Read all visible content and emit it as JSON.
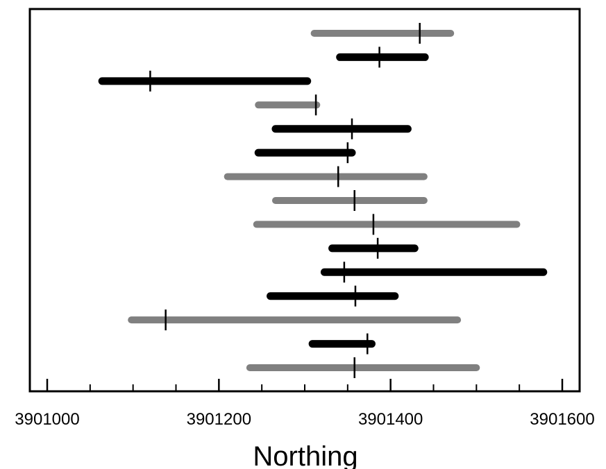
{
  "chart_data": {
    "type": "range",
    "title": "",
    "xlabel": "Northing",
    "ylabel": "",
    "xlim": [
      3900980,
      3901620
    ],
    "xticks": [
      3901000,
      3901200,
      3901400,
      3901600
    ],
    "minor_xticks": [
      3901050,
      3901100,
      3901150,
      3901250,
      3901300,
      3901350,
      3901450,
      3901500,
      3901550
    ],
    "grid": false,
    "legend": "none",
    "colors": {
      "black": "#000000",
      "gray": "#808080"
    },
    "intervals": [
      {
        "low": 3901311,
        "high": 3901470,
        "mark": 3901434,
        "color": "gray"
      },
      {
        "low": 3901341,
        "high": 3901440,
        "mark": 3901387,
        "color": "black"
      },
      {
        "low": 3901064,
        "high": 3901303,
        "mark": 3901120,
        "color": "black"
      },
      {
        "low": 3901246,
        "high": 3901314,
        "mark": 3901313,
        "color": "gray"
      },
      {
        "low": 3901266,
        "high": 3901420,
        "mark": 3901355,
        "color": "black"
      },
      {
        "low": 3901246,
        "high": 3901355,
        "mark": 3901350,
        "color": "black"
      },
      {
        "low": 3901210,
        "high": 3901439,
        "mark": 3901339,
        "color": "gray"
      },
      {
        "low": 3901266,
        "high": 3901439,
        "mark": 3901358,
        "color": "gray"
      },
      {
        "low": 3901244,
        "high": 3901547,
        "mark": 3901380,
        "color": "gray"
      },
      {
        "low": 3901332,
        "high": 3901428,
        "mark": 3901385,
        "color": "black"
      },
      {
        "low": 3901323,
        "high": 3901578,
        "mark": 3901346,
        "color": "black"
      },
      {
        "low": 3901260,
        "high": 3901405,
        "mark": 3901359,
        "color": "black"
      },
      {
        "low": 3901098,
        "high": 3901478,
        "mark": 3901138,
        "color": "gray"
      },
      {
        "low": 3901309,
        "high": 3901378,
        "mark": 3901373,
        "color": "black"
      },
      {
        "low": 3901236,
        "high": 3901500,
        "mark": 3901358,
        "color": "gray"
      }
    ]
  }
}
